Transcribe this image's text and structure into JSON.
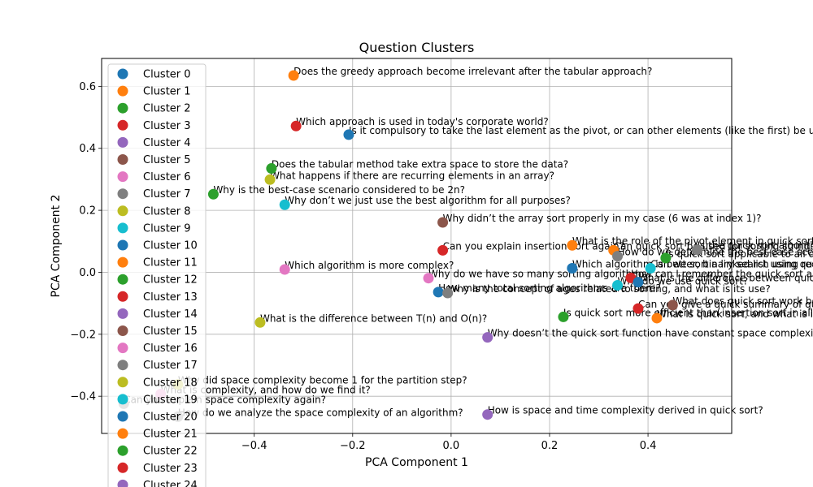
{
  "chart_data": {
    "type": "scatter",
    "title": "Question Clusters",
    "xlabel": "PCA Component 1",
    "ylabel": "PCA Component 2",
    "xlim": [
      -0.71,
      0.57
    ],
    "ylim": [
      -0.52,
      0.69
    ],
    "xticks": [
      "−0.4",
      "−0.2",
      "0.0",
      "0.2",
      "0.4"
    ],
    "xtick_values": [
      -0.4,
      -0.2,
      0.0,
      0.2,
      0.4
    ],
    "yticks": [
      "−0.4",
      "−0.2",
      "0.0",
      "0.2",
      "0.4",
      "0.6"
    ],
    "ytick_values": [
      -0.4,
      -0.2,
      0.0,
      0.2,
      0.4,
      0.6
    ],
    "grid": true,
    "legend_placement": "upper-left",
    "palette": [
      "#1f77b4",
      "#ff7f0e",
      "#2ca02c",
      "#d62728",
      "#9467bd",
      "#8c564b",
      "#e377c2",
      "#7f7f7f",
      "#bcbd22",
      "#17becf"
    ],
    "legend": [
      "Cluster 0",
      "Cluster 1",
      "Cluster 2",
      "Cluster 3",
      "Cluster 4",
      "Cluster 5",
      "Cluster 6",
      "Cluster 7",
      "Cluster 8",
      "Cluster 9",
      "Cluster 10",
      "Cluster 11",
      "Cluster 12",
      "Cluster 13",
      "Cluster 14",
      "Cluster 15",
      "Cluster 16",
      "Cluster 17",
      "Cluster 18",
      "Cluster 19",
      "Cluster 20",
      "Cluster 21",
      "Cluster 22",
      "Cluster 23",
      "Cluster 24"
    ],
    "points": [
      {
        "x": -0.32,
        "y": 0.635,
        "c": 1,
        "label": "Does the greedy approach become irrelevant after the tabular approach?"
      },
      {
        "x": -0.315,
        "y": 0.472,
        "c": 3,
        "label": "Which approach is used in today's corporate world?"
      },
      {
        "x": -0.208,
        "y": 0.444,
        "c": 0,
        "label": "Is it compulsory to take the last element as the pivot, or can other elements (like the first) be used?"
      },
      {
        "x": -0.365,
        "y": 0.335,
        "c": 2,
        "label": "Does the tabular method take extra space to store the data?"
      },
      {
        "x": -0.368,
        "y": 0.299,
        "c": 8,
        "label": "What happens if there are recurring elements in an array?"
      },
      {
        "x": -0.483,
        "y": 0.252,
        "c": 2,
        "label": "Why is the best-case scenario considered to be 2n?"
      },
      {
        "x": -0.338,
        "y": 0.218,
        "c": 9,
        "label": "Why don’t we just use the best algorithm for all purposes?"
      },
      {
        "x": -0.017,
        "y": 0.161,
        "c": 5,
        "label": "Why didn’t the array sort properly in my case (6 was at index 1)?"
      },
      {
        "x": 0.246,
        "y": 0.087,
        "c": 1,
        "label": "What is the role of the pivot element in quick sort?"
      },
      {
        "x": 0.33,
        "y": 0.071,
        "c": 1,
        "label": "Can quick sort be used for sorting strings?"
      },
      {
        "x": 0.5,
        "y": 0.073,
        "c": 7,
        "label": "Is the quick sort algorithm stable?"
      },
      {
        "x": 0.338,
        "y": 0.052,
        "c": 7,
        "label": "How do we determine the best-case scenario?"
      },
      {
        "x": 0.436,
        "y": 0.046,
        "c": 2,
        "label": "Is quick sort applicable to all data?"
      },
      {
        "x": -0.017,
        "y": 0.071,
        "c": 3,
        "label": "Can you explain insertion sort again?"
      },
      {
        "x": 0.246,
        "y": 0.013,
        "c": 0,
        "label": "Which algorithm is better, binary search using recursion or iteration?"
      },
      {
        "x": 0.405,
        "y": 0.013,
        "c": 9,
        "label": "Can we sort a linked list using quick sort?"
      },
      {
        "x": -0.338,
        "y": 0.009,
        "c": 6,
        "label": "Which algorithm is more complex?"
      },
      {
        "x": 0.365,
        "y": -0.018,
        "c": 3,
        "label": "How can I remember the quick sort algorithm?"
      },
      {
        "x": 0.38,
        "y": -0.032,
        "c": 0,
        "label": "What is the difference between quick sort and merge sort?"
      },
      {
        "x": 0.338,
        "y": -0.042,
        "c": 9,
        "label": "Why do we use quick sort?"
      },
      {
        "x": -0.046,
        "y": -0.019,
        "c": 6,
        "label": "Why do we have so many sorting algorithms?"
      },
      {
        "x": -0.026,
        "y": -0.064,
        "c": 0,
        "label": "How many total sorting algorithms are there?"
      },
      {
        "x": -0.007,
        "y": -0.067,
        "c": 7,
        "label": "Why is the concept of ages related to sorting, and what is its use?"
      },
      {
        "x": 0.45,
        "y": -0.106,
        "c": 5,
        "label": "What does quick sort work best with?"
      },
      {
        "x": 0.38,
        "y": -0.117,
        "c": 3,
        "label": "Can you give a quick summary of quick sort?"
      },
      {
        "x": 0.418,
        "y": -0.148,
        "c": 1,
        "label": "What is quick sort, and what is its complexity?"
      },
      {
        "x": 0.228,
        "y": -0.144,
        "c": 2,
        "label": "Is quick sort more efficient than insertion sort in all cases?"
      },
      {
        "x": -0.388,
        "y": -0.162,
        "c": 8,
        "label": "What is the difference between T(n) and O(n)?"
      },
      {
        "x": 0.074,
        "y": -0.21,
        "c": 4,
        "label": "Why doesn’t the quick sort function have constant space complexity?"
      },
      {
        "x": -0.555,
        "y": -0.362,
        "c": 8,
        "label": "Why did space complexity become 1 for the partition step?"
      },
      {
        "x": -0.59,
        "y": -0.393,
        "c": 6,
        "label": "What is complexity, and how do we find it?"
      },
      {
        "x": -0.665,
        "y": -0.424,
        "c": 7,
        "label": "Can you explain space complexity again?"
      },
      {
        "x": -0.555,
        "y": -0.466,
        "c": 7,
        "label": "How do we analyze the space complexity of an algorithm?"
      },
      {
        "x": 0.074,
        "y": -0.459,
        "c": 4,
        "label": "How is space and time complexity derived in quick sort?"
      }
    ]
  }
}
